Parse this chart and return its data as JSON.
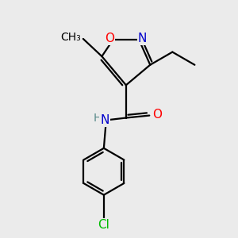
{
  "bg_color": "#ebebeb",
  "atom_colors": {
    "C": "#000000",
    "N": "#0000cc",
    "O": "#ff0000",
    "Cl": "#00bb00",
    "H": "#558888"
  },
  "bond_color": "#000000",
  "font_size": 11,
  "lw": 1.6
}
